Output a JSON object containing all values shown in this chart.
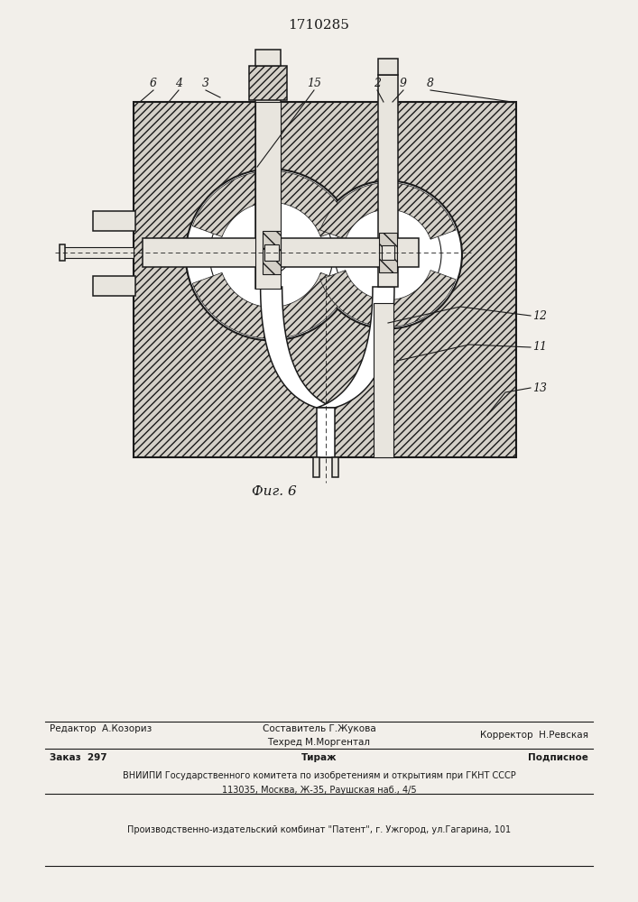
{
  "patent_number": "1710285",
  "figure_caption": "Фиг. 6",
  "bg_color": "#f2efea",
  "line_color": "#1a1a1a",
  "footer": {
    "editor_label": "Редактор  А.Козориз",
    "composer_label": "Составитель Г.Жукова",
    "tech_label": "Техред М.Моргентал",
    "corrector_label": "Корректор  Н.Ревская",
    "order_label": "Заказ  297",
    "circulation_label": "Тираж",
    "subscription_label": "Подписное",
    "vniiipi_line1": "ВНИИПИ Государственного комитета по изобретениям и открытиям при ГКНТ СССР",
    "vniiipi_line2": "113035, Москва, Ж-35, Раушская наб., 4/5",
    "production_line": "Производственно-издательский комбинат \"Патент\", г. Ужгород, ул.Гагарина, 101"
  }
}
